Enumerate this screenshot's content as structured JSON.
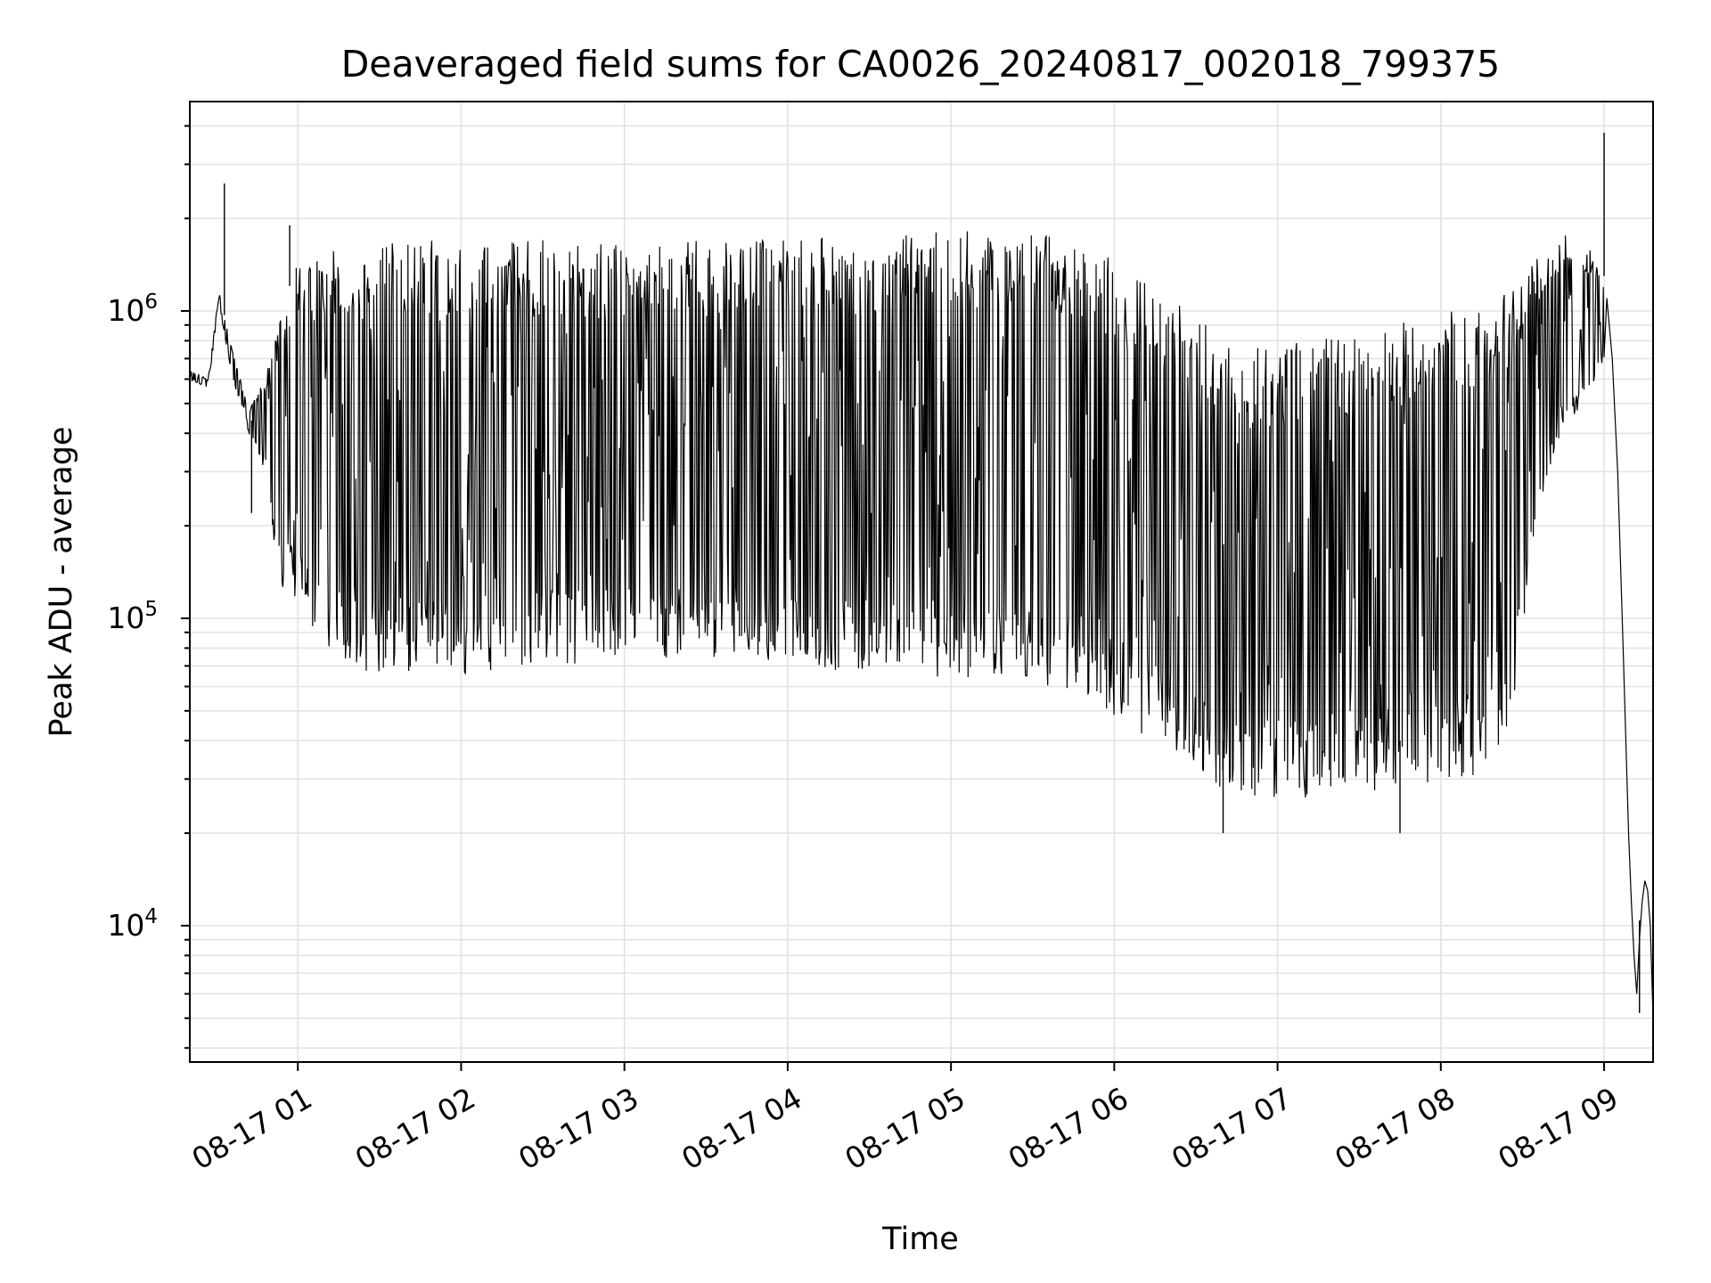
{
  "chart_data": {
    "type": "line",
    "title": "Deaveraged field sums for CA0026_20240817_002018_799375",
    "xlabel": "Time",
    "ylabel": "Peak ADU - average",
    "yscale": "log",
    "ylim": [
      3600,
      4800000
    ],
    "xlim": [
      "2024-08-17 00:20:18",
      "2024-08-17 09:18:00"
    ],
    "grid": true,
    "line_color": "#000000",
    "x_ticks": [
      {
        "value": "2024-08-17 01:00",
        "label": "08-17 01"
      },
      {
        "value": "2024-08-17 02:00",
        "label": "08-17 02"
      },
      {
        "value": "2024-08-17 03:00",
        "label": "08-17 03"
      },
      {
        "value": "2024-08-17 04:00",
        "label": "08-17 04"
      },
      {
        "value": "2024-08-17 05:00",
        "label": "08-17 05"
      },
      {
        "value": "2024-08-17 06:00",
        "label": "08-17 06"
      },
      {
        "value": "2024-08-17 07:00",
        "label": "08-17 07"
      },
      {
        "value": "2024-08-17 08:00",
        "label": "08-17 08"
      },
      {
        "value": "2024-08-17 09:00",
        "label": "08-17 09"
      }
    ],
    "y_ticks": [
      {
        "value": 10000,
        "base": "10",
        "exp": "4"
      },
      {
        "value": 100000,
        "base": "10",
        "exp": "5"
      },
      {
        "value": 1000000,
        "base": "10",
        "exp": "6"
      }
    ],
    "series": [
      {
        "style": "oscillating",
        "points": [
          [
            "2024-08-17 00:20",
            650000,
            600000
          ],
          [
            "2024-08-17 00:27",
            600000,
            560000
          ],
          [
            "2024-08-17 00:31",
            1150000,
            1050000
          ],
          [
            "2024-08-17 00:36",
            750000,
            600000
          ],
          [
            "2024-08-17 00:42",
            480000,
            400000
          ],
          [
            "2024-08-17 00:48",
            600000,
            300000
          ],
          [
            "2024-08-17 00:53",
            900000,
            130000
          ],
          [
            "2024-08-17 01:00",
            1500000,
            110000
          ],
          [
            "2024-08-17 01:12",
            1600000,
            75000
          ],
          [
            "2024-08-17 01:25",
            1650000,
            66000
          ],
          [
            "2024-08-17 01:40",
            1700000,
            66000
          ],
          [
            "2024-08-17 02:00",
            1700000,
            66000
          ],
          [
            "2024-08-17 02:30",
            1700000,
            70000
          ],
          [
            "2024-08-17 03:00",
            1700000,
            72000
          ],
          [
            "2024-08-17 03:30",
            1700000,
            72000
          ],
          [
            "2024-08-17 04:00",
            1720000,
            70000
          ],
          [
            "2024-08-17 04:30",
            1750000,
            66000
          ],
          [
            "2024-08-17 05:00",
            1850000,
            64000
          ],
          [
            "2024-08-17 05:30",
            1800000,
            60000
          ],
          [
            "2024-08-17 05:50",
            1650000,
            55000
          ],
          [
            "2024-08-17 06:05",
            1400000,
            45000
          ],
          [
            "2024-08-17 06:20",
            1100000,
            36000
          ],
          [
            "2024-08-17 06:35",
            900000,
            28000
          ],
          [
            "2024-08-17 06:50",
            750000,
            26000
          ],
          [
            "2024-08-17 07:10",
            800000,
            26000
          ],
          [
            "2024-08-17 07:30",
            850000,
            27000
          ],
          [
            "2024-08-17 07:50",
            950000,
            28000
          ],
          [
            "2024-08-17 08:10",
            1050000,
            30000
          ],
          [
            "2024-08-17 08:25",
            1150000,
            35000
          ],
          [
            "2024-08-17 08:35",
            1500000,
            200000
          ],
          [
            "2024-08-17 08:45",
            1800000,
            400000
          ],
          [
            "2024-08-17 08:55",
            1600000,
            550000
          ],
          [
            "2024-08-17 09:00",
            1300000,
            700000
          ]
        ]
      },
      {
        "style": "smooth",
        "points": [
          [
            "2024-08-17 09:01",
            1100000
          ],
          [
            "2024-08-17 09:03",
            700000
          ],
          [
            "2024-08-17 09:05",
            300000
          ],
          [
            "2024-08-17 09:07",
            80000
          ],
          [
            "2024-08-17 09:09",
            20000
          ],
          [
            "2024-08-17 09:10",
            12000
          ],
          [
            "2024-08-17 09:11",
            8000
          ],
          [
            "2024-08-17 09:12",
            6000
          ],
          [
            "2024-08-17 09:13",
            9000
          ],
          [
            "2024-08-17 09:14",
            12000
          ],
          [
            "2024-08-17 09:15",
            14000
          ],
          [
            "2024-08-17 09:16",
            13000
          ],
          [
            "2024-08-17 09:17",
            10000
          ],
          [
            "2024-08-17 09:18",
            5000
          ]
        ]
      }
    ],
    "spikes": [
      [
        "2024-08-17 00:33",
        2600000
      ],
      [
        "2024-08-17 00:57",
        1900000
      ],
      [
        "2024-08-17 00:43",
        220000
      ],
      [
        "2024-08-17 09:00",
        3800000
      ],
      [
        "2024-08-17 09:13",
        5200
      ],
      [
        "2024-08-17 06:40",
        20000
      ],
      [
        "2024-08-17 07:45",
        20000
      ]
    ]
  }
}
